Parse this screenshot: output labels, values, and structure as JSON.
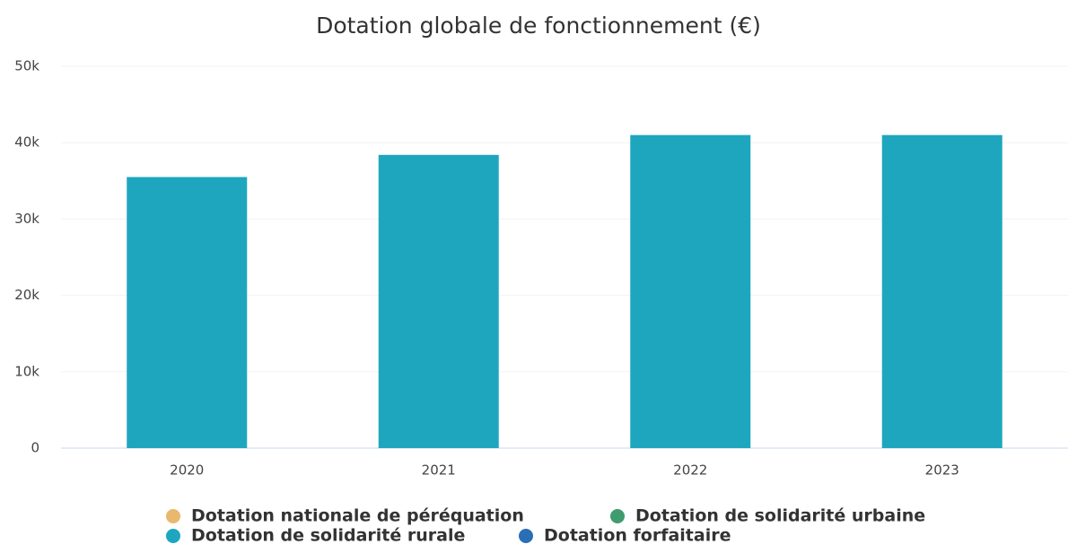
{
  "chart_data": {
    "type": "stacked_bar",
    "title": "Dotation globale de fonctionnement (€)",
    "categories": [
      "2020",
      "2021",
      "2022",
      "2023"
    ],
    "series": [
      {
        "name": "Dotation nationale de péréquation",
        "color": "#e8b86d",
        "values": [
          0,
          0,
          0,
          0
        ]
      },
      {
        "name": "Dotation de solidarité urbaine",
        "color": "#3f9c6e",
        "values": [
          0,
          0,
          0,
          0
        ]
      },
      {
        "name": "Dotation de solidarité rurale",
        "color": "#1fa6bf",
        "values": [
          35500,
          38400,
          41000,
          41000
        ]
      },
      {
        "name": "Dotation forfaitaire",
        "color": "#2a6fb5",
        "values": [
          0,
          0,
          0,
          0
        ]
      }
    ],
    "ylim": [
      0,
      50000
    ],
    "yticks": [
      0,
      {
        "value": 10000,
        "label": "10k"
      },
      {
        "value": 20000,
        "label": "20k"
      },
      {
        "value": 30000,
        "label": "30k"
      },
      {
        "value": 40000,
        "label": "40k"
      },
      {
        "value": 50000,
        "label": "50k"
      }
    ],
    "grid": true
  }
}
